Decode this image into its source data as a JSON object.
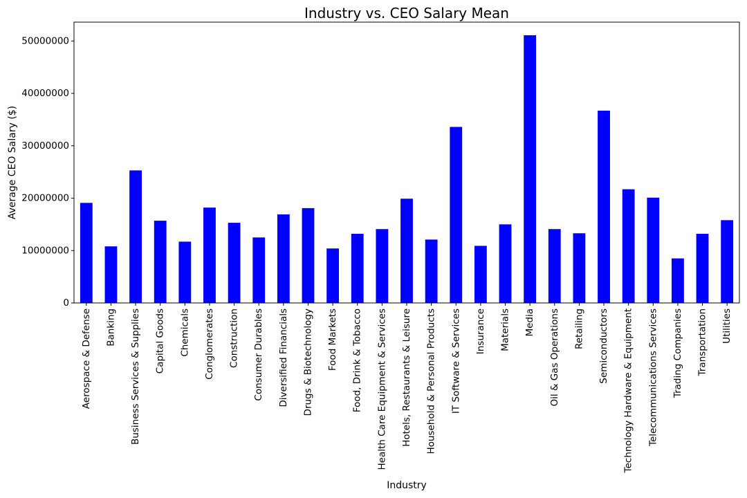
{
  "chart_data": {
    "type": "bar",
    "title": "Industry vs. CEO Salary Mean",
    "xlabel": "Industry",
    "ylabel": "Average CEO Salary ($)",
    "ylim": [
      0,
      53600000
    ],
    "yticks": [
      0,
      10000000,
      20000000,
      30000000,
      40000000,
      50000000
    ],
    "ytick_labels": [
      "0",
      "10000000",
      "20000000",
      "30000000",
      "40000000",
      "50000000"
    ],
    "bar_color": "#0000ff",
    "grid": false,
    "categories": [
      "Aerospace & Defense",
      "Banking",
      "Business Services & Supplies",
      "Capital Goods",
      "Chemicals",
      "Conglomerates",
      "Construction",
      "Consumer Durables",
      "Diversified Financials",
      "Drugs & Biotechnology",
      "Food Markets",
      "Food, Drink & Tobacco",
      "Health Care Equipment & Services",
      "Hotels, Restaurants & Leisure",
      "Household & Personal Products",
      "IT Software & Services",
      "Insurance",
      "Materials",
      "Media",
      "Oil & Gas Operations",
      "Retailing",
      "Semiconductors",
      "Technology Hardware & Equipment",
      "Telecommunications Services",
      "Trading Companies",
      "Transportation",
      "Utilities"
    ],
    "values": [
      19100000,
      10800000,
      25300000,
      15700000,
      11700000,
      18200000,
      15300000,
      12500000,
      16900000,
      18100000,
      10400000,
      13200000,
      14100000,
      19900000,
      12100000,
      33600000,
      10900000,
      15000000,
      51100000,
      14100000,
      13300000,
      36700000,
      21700000,
      20100000,
      8500000,
      13200000,
      15800000
    ]
  }
}
